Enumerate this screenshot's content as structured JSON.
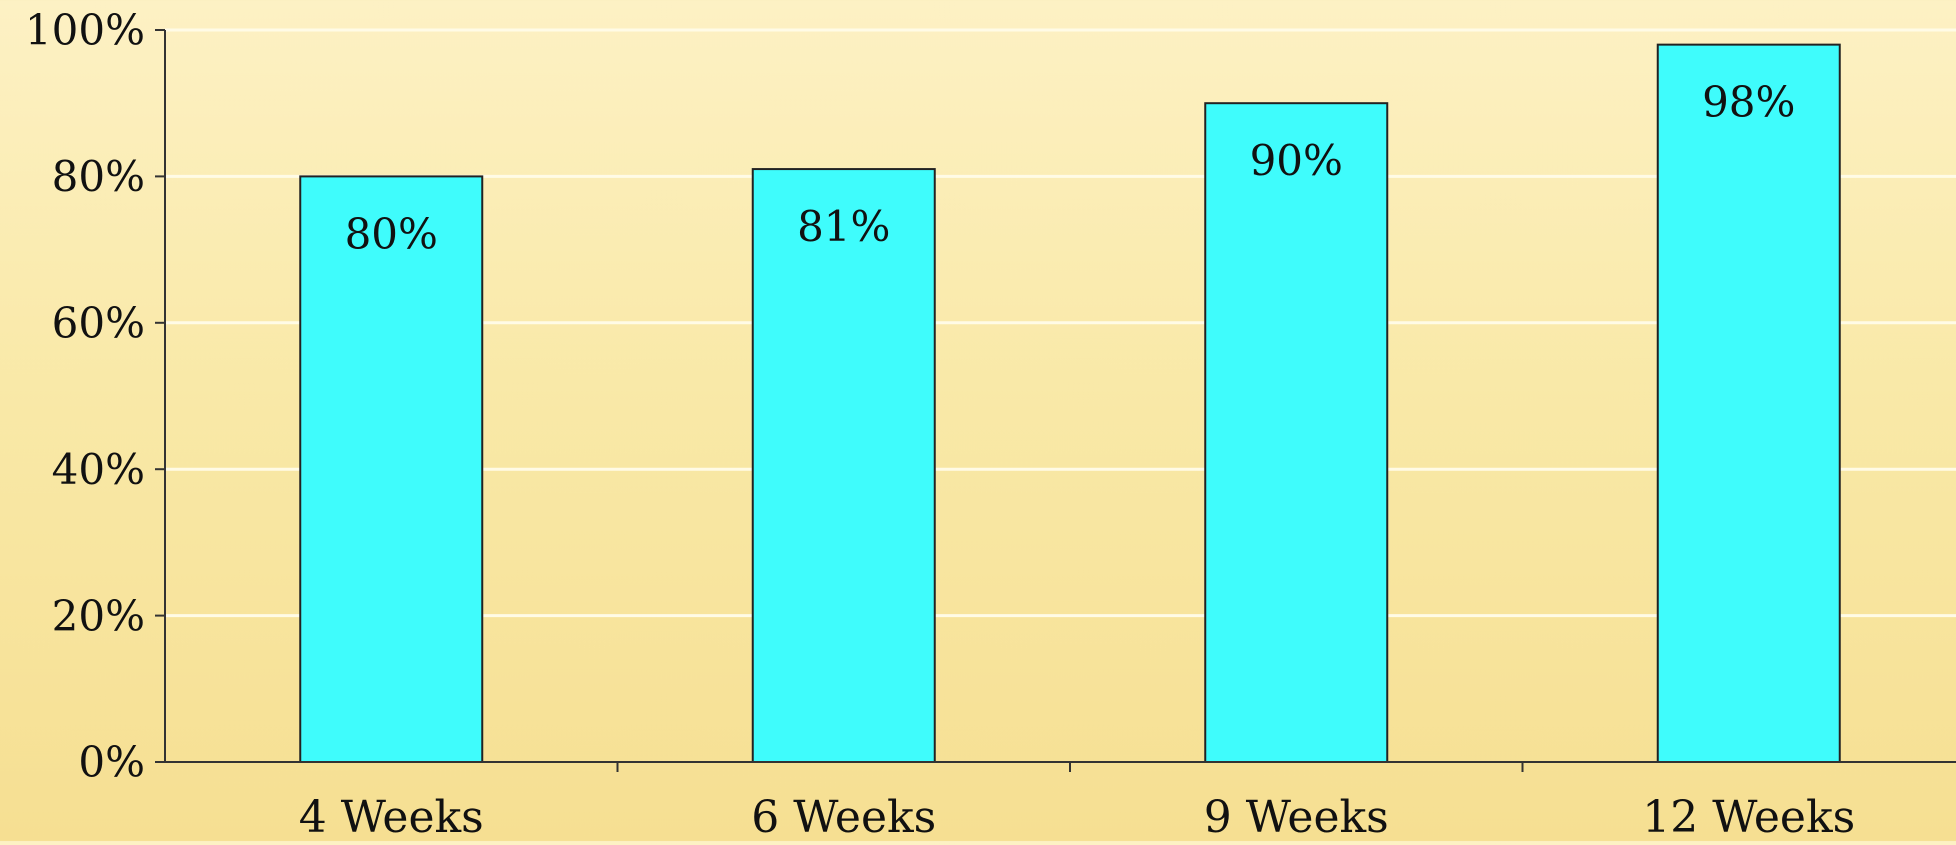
{
  "chart_data": {
    "type": "bar",
    "categories": [
      "4 Weeks",
      "6 Weeks",
      "9 Weeks",
      "12 Weeks"
    ],
    "values": [
      80,
      81,
      90,
      98
    ],
    "data_labels": [
      "80%",
      "81%",
      "90%",
      "98%"
    ],
    "ylim": [
      0,
      100
    ],
    "yticks": [
      0,
      20,
      40,
      60,
      80,
      100
    ],
    "ytick_labels": [
      "0%",
      "20%",
      "40%",
      "60%",
      "80%",
      "100%"
    ],
    "grid": true,
    "title": "",
    "xlabel": "",
    "ylabel": "",
    "colors": {
      "bar_fill": "#3ffcfc",
      "bar_stroke": "#222222",
      "grid": "#fffbe6",
      "axis": "#333333",
      "text": "#111111"
    }
  }
}
